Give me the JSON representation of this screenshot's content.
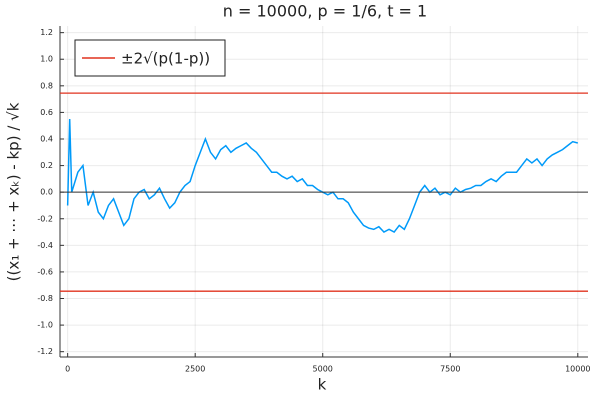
{
  "chart_data": {
    "type": "line",
    "title": "n = 10000,  p = 1/6,  t = 1",
    "x_label": "k",
    "y_label": "((x₁ + ⋯ + xₖ) - kp) / √k",
    "x": [
      0,
      40,
      80,
      200,
      300,
      400,
      500,
      600,
      700,
      800,
      900,
      1000,
      1100,
      1200,
      1300,
      1400,
      1500,
      1600,
      1700,
      1800,
      1900,
      2000,
      2100,
      2200,
      2300,
      2400,
      2500,
      2600,
      2700,
      2750,
      2800,
      2900,
      3000,
      3100,
      3200,
      3300,
      3400,
      3500,
      3600,
      3700,
      3800,
      3900,
      4000,
      4100,
      4200,
      4300,
      4400,
      4500,
      4600,
      4700,
      4800,
      4900,
      5000,
      5100,
      5200,
      5300,
      5400,
      5500,
      5600,
      5700,
      5800,
      5900,
      6000,
      6100,
      6200,
      6300,
      6400,
      6500,
      6600,
      6700,
      6800,
      6900,
      7000,
      7100,
      7200,
      7300,
      7400,
      7500,
      7600,
      7700,
      7800,
      7900,
      8000,
      8100,
      8200,
      8300,
      8400,
      8500,
      8600,
      8700,
      8800,
      8900,
      9000,
      9100,
      9200,
      9300,
      9400,
      9500,
      9600,
      9700,
      9800,
      9900,
      10000
    ],
    "series": [
      {
        "color": "#009af9",
        "values": [
          -0.1,
          0.55,
          0.0,
          0.15,
          0.2,
          -0.1,
          0.0,
          -0.15,
          -0.2,
          -0.1,
          -0.05,
          -0.15,
          -0.25,
          -0.2,
          -0.05,
          0.0,
          0.02,
          -0.05,
          -0.02,
          0.03,
          -0.05,
          -0.12,
          -0.08,
          0.0,
          0.05,
          0.08,
          0.2,
          0.3,
          0.4,
          0.35,
          0.3,
          0.25,
          0.32,
          0.35,
          0.3,
          0.33,
          0.35,
          0.37,
          0.33,
          0.3,
          0.25,
          0.2,
          0.15,
          0.15,
          0.12,
          0.1,
          0.12,
          0.08,
          0.1,
          0.05,
          0.05,
          0.02,
          0.0,
          -0.02,
          0.0,
          -0.05,
          -0.05,
          -0.08,
          -0.15,
          -0.2,
          -0.25,
          -0.27,
          -0.28,
          -0.26,
          -0.3,
          -0.28,
          -0.3,
          -0.25,
          -0.28,
          -0.2,
          -0.1,
          0.0,
          0.05,
          0.0,
          0.03,
          -0.02,
          0.0,
          -0.02,
          0.03,
          0.0,
          0.02,
          0.03,
          0.05,
          0.05,
          0.08,
          0.1,
          0.08,
          0.12,
          0.15,
          0.15,
          0.15,
          0.2,
          0.25,
          0.22,
          0.25,
          0.2,
          0.25,
          0.28,
          0.3,
          0.32,
          0.35,
          0.38,
          0.37
        ]
      }
    ],
    "bounds": {
      "name": "±2√(p(1-p))",
      "color": "#e0321e",
      "values": [
        0.745,
        -0.745
      ]
    },
    "zero_line": {
      "value": 0,
      "color": "#333333"
    },
    "xlim": [
      -150,
      10200
    ],
    "ylim": [
      -1.24,
      1.25
    ],
    "xticks": [
      0,
      2500,
      5000,
      7500,
      10000
    ],
    "yticks": [
      {
        "value": -1.2,
        "label": "-1.2"
      },
      {
        "value": -1.0,
        "label": "-1.0"
      },
      -0.8,
      -0.6,
      -0.4,
      -0.2,
      {
        "value": 0,
        "label": "0.0"
      },
      0.2,
      0.4,
      0.6,
      0.8,
      {
        "value": 1.0,
        "label": "1.0"
      },
      1.2
    ],
    "grid": true,
    "legend": "top-left"
  }
}
